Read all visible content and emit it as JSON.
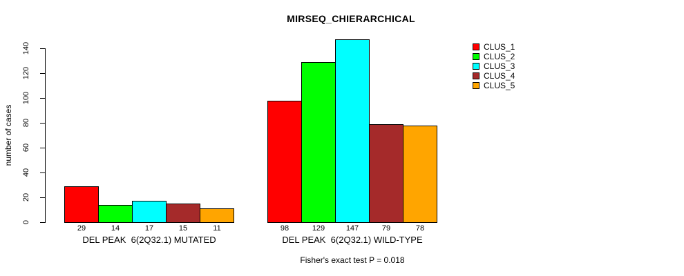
{
  "chart_data": {
    "type": "bar",
    "title": "MIRSEQ_CHIERARCHICAL",
    "ylabel": "number of cases",
    "xlabel": "",
    "ylim": [
      0,
      140
    ],
    "yticks": [
      0,
      20,
      40,
      60,
      80,
      100,
      120,
      140
    ],
    "grid": false,
    "legend_position": "right",
    "categories": [
      "DEL PEAK  6(2Q32.1) MUTATED",
      "DEL PEAK  6(2Q32.1) WILD-TYPE"
    ],
    "series": [
      {
        "name": "CLUS_1",
        "color": "#FF0000",
        "values": [
          29,
          98
        ]
      },
      {
        "name": "CLUS_2",
        "color": "#00FF00",
        "values": [
          14,
          129
        ]
      },
      {
        "name": "CLUS_3",
        "color": "#00FFFF",
        "values": [
          17,
          147
        ]
      },
      {
        "name": "CLUS_4",
        "color": "#A52A2A",
        "values": [
          15,
          79
        ]
      },
      {
        "name": "CLUS_5",
        "color": "#FFA500",
        "values": [
          11,
          78
        ]
      }
    ],
    "bar_value_labels": true,
    "annotation": "Fisher's exact test P = 0.018"
  }
}
